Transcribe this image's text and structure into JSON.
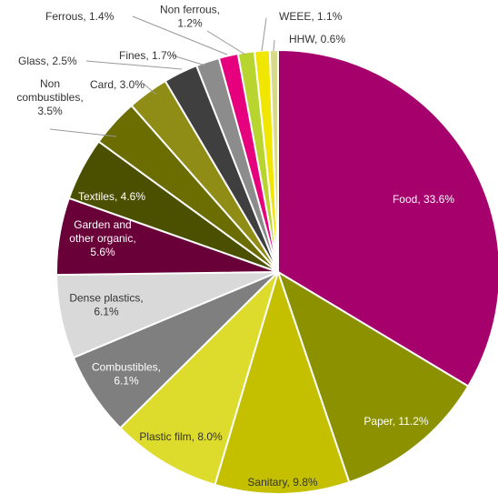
{
  "chart_data": {
    "type": "pie",
    "slices": [
      {
        "name": "Food",
        "label": "Food, 33.6%",
        "value": 33.6,
        "color": "#A5006B"
      },
      {
        "name": "Paper",
        "label": "Paper, 11.2%",
        "value": 11.2,
        "color": "#8C9100"
      },
      {
        "name": "Sanitary",
        "label": "Sanitary, 9.8%",
        "value": 9.8,
        "color": "#C4C000"
      },
      {
        "name": "Plastic film",
        "label": "Plastic film, 8.0%",
        "value": 8.0,
        "color": "#DDDB2C"
      },
      {
        "name": "Combustibles",
        "label": "Combustibles, 6.1%",
        "value": 6.1,
        "color": "#7F7F7F"
      },
      {
        "name": "Dense plastics",
        "label": "Dense plastics, 6.1%",
        "value": 6.1,
        "color": "#D9D9D9"
      },
      {
        "name": "Garden and other organic",
        "label": "Garden and other organic, 5.6%",
        "value": 5.6,
        "color": "#690037"
      },
      {
        "name": "Textiles",
        "label": "Textiles, 4.6%",
        "value": 4.6,
        "color": "#4B4F00"
      },
      {
        "name": "Non combustibles",
        "label": "Non combustibles, 3.5%",
        "value": 3.5,
        "color": "#6B6D00"
      },
      {
        "name": "Card",
        "label": "Card, 3.0%",
        "value": 3.0,
        "color": "#8F8D16"
      },
      {
        "name": "Glass",
        "label": "Glass, 2.5%",
        "value": 2.5,
        "color": "#3F3F3F"
      },
      {
        "name": "Fines",
        "label": "Fines, 1.7%",
        "value": 1.7,
        "color": "#8C8C8C"
      },
      {
        "name": "Ferrous",
        "label": "Ferrous, 1.4%",
        "value": 1.4,
        "color": "#E6007E"
      },
      {
        "name": "Non ferrous",
        "label": "Non ferrous, 1.2%",
        "value": 1.2,
        "color": "#B8D42F"
      },
      {
        "name": "WEEE",
        "label": "WEEE, 1.1%",
        "value": 1.1,
        "color": "#F0E600"
      },
      {
        "name": "HHW",
        "label": "HHW, 0.6%",
        "value": 0.6,
        "color": "#D9D98A"
      }
    ]
  }
}
